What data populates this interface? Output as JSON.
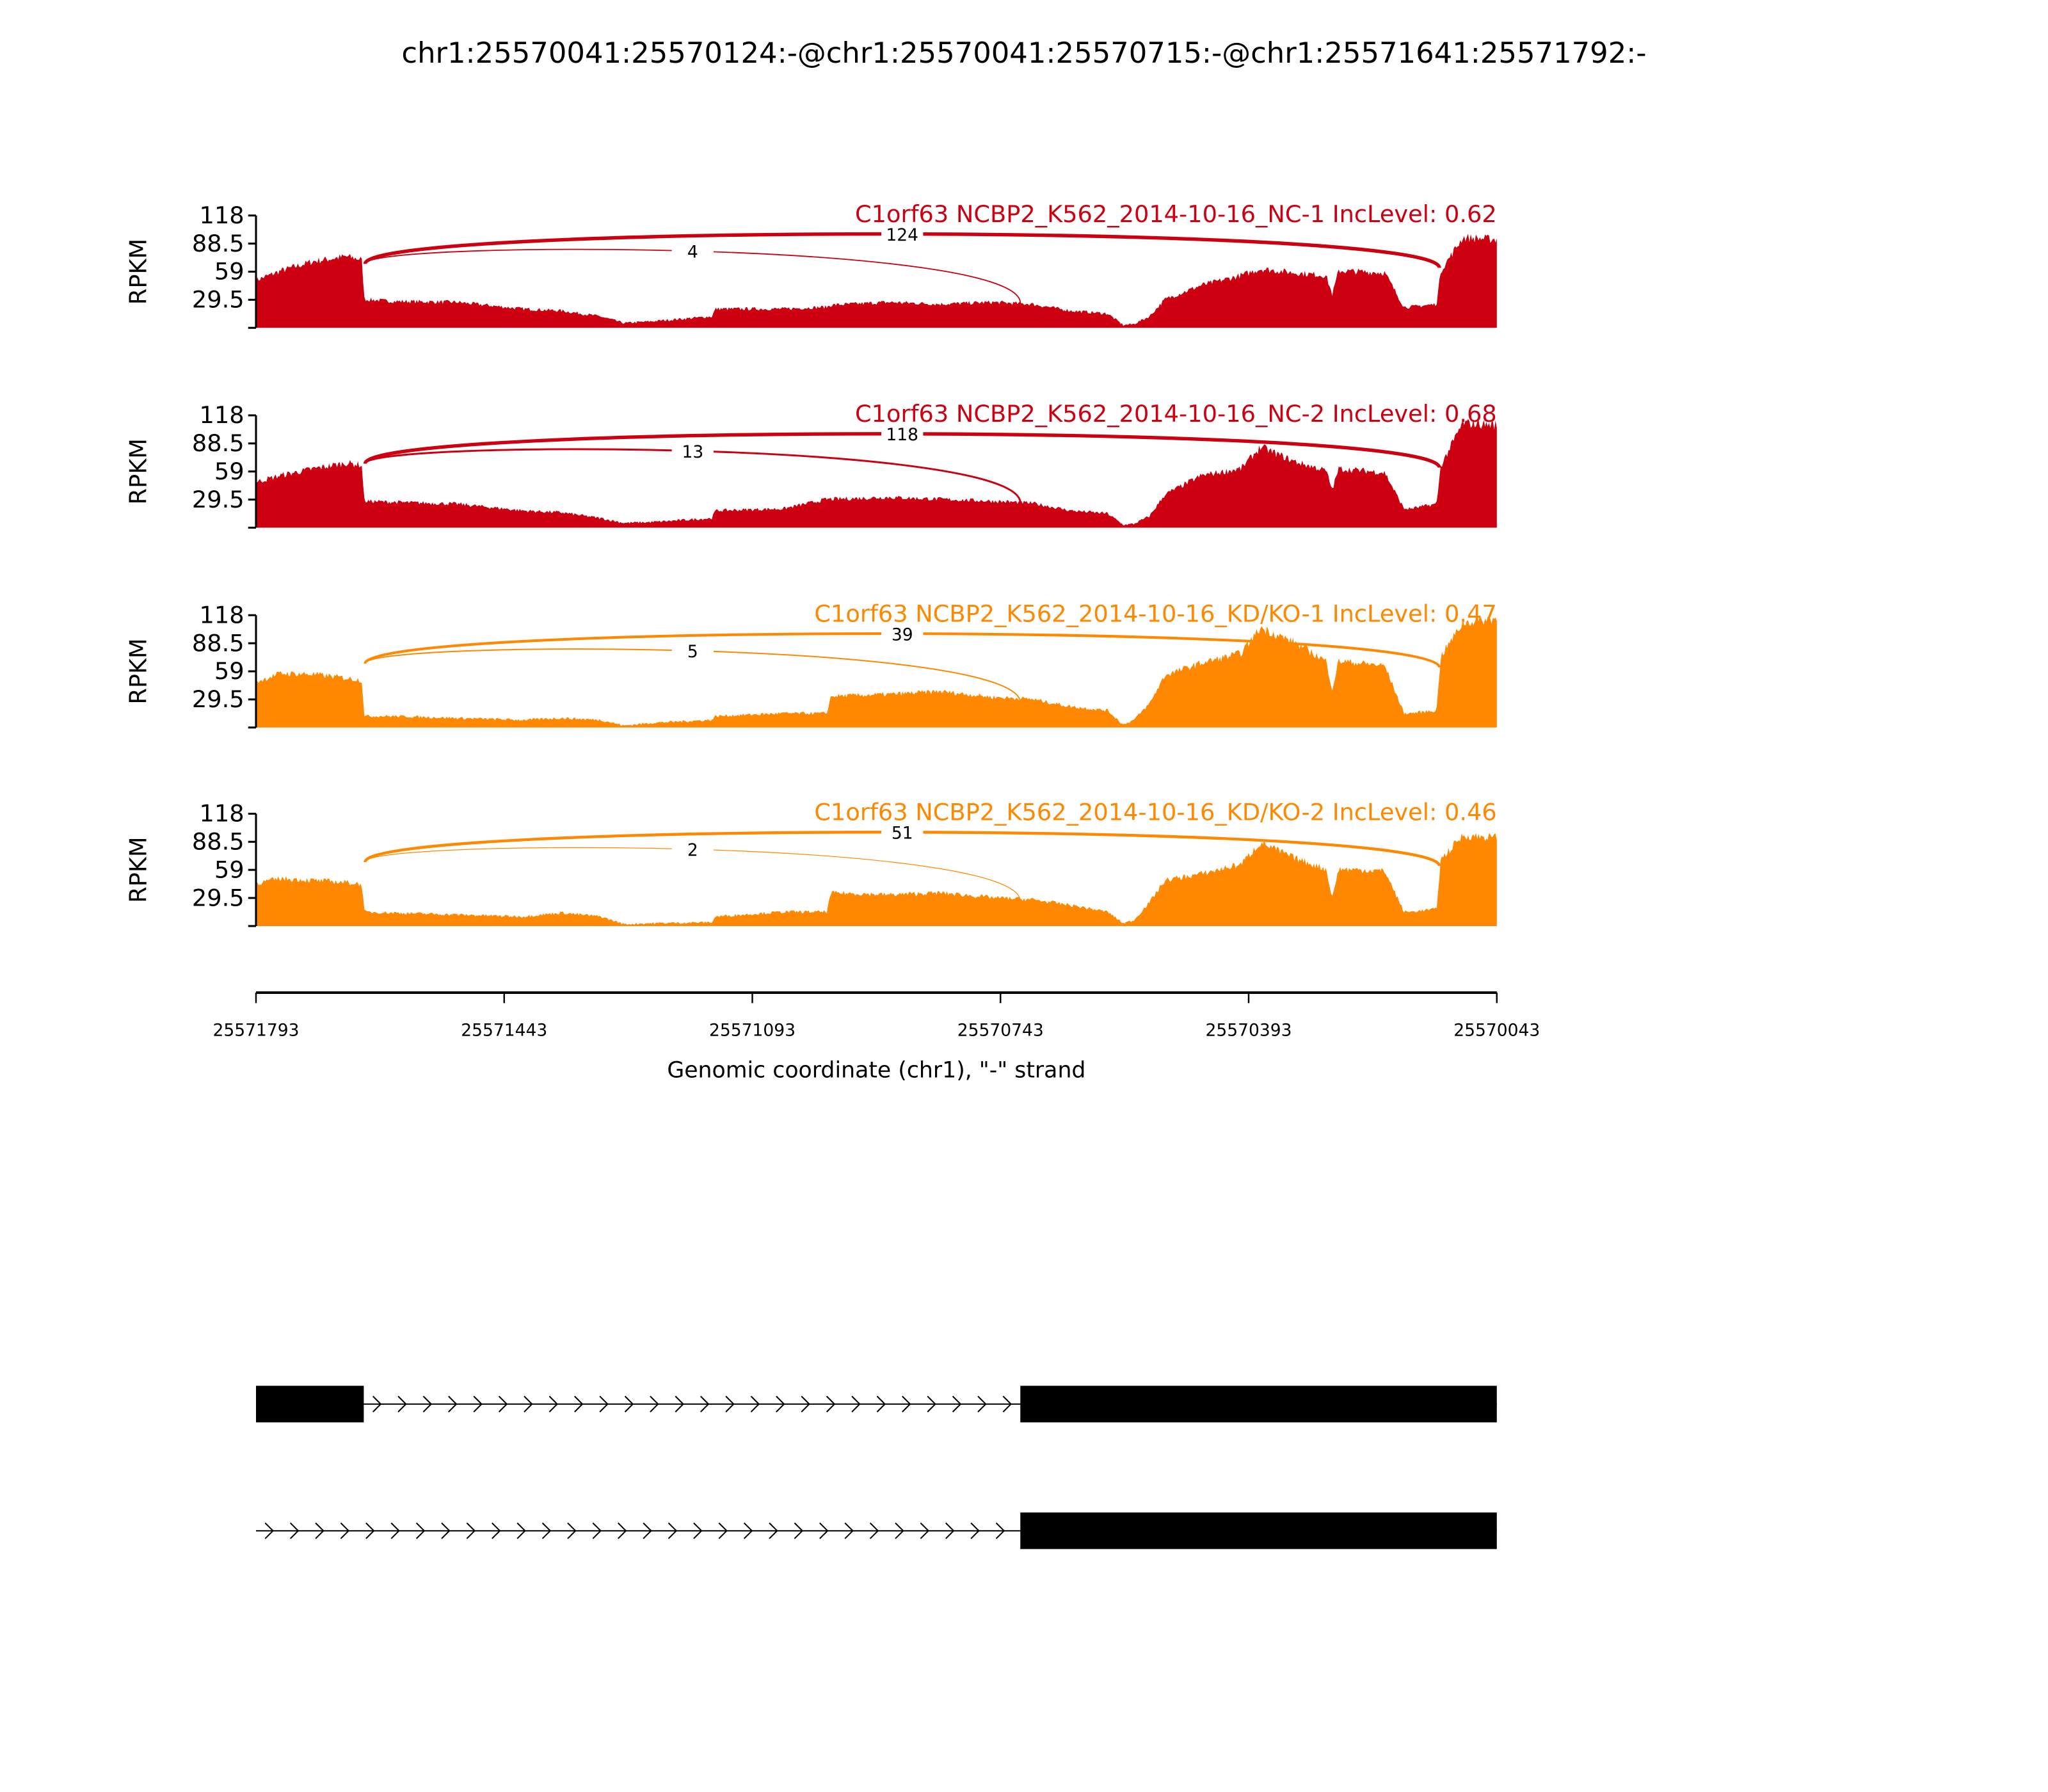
{
  "chart_data": {
    "type": "area",
    "title": "chr1:25570041:25570124:-@chr1:25570041:25570715:-@chr1:25571641:25571792:-",
    "xlabel": "Genomic coordinate (chr1), \"-\" strand",
    "ylabel": "RPKM",
    "xlim": [
      25571793,
      25570043
    ],
    "xticks": [
      "25571793",
      "25571443",
      "25571093",
      "25570743",
      "25570393",
      "25570043"
    ],
    "xtick_values": [
      25571793,
      25571443,
      25571093,
      25570743,
      25570393,
      25570043
    ],
    "ylim": [
      0,
      118
    ],
    "yticks": [
      "118",
      "88.5",
      "59",
      "29.5"
    ],
    "ytick_values": [
      118,
      88.5,
      59,
      29.5,
      0
    ],
    "positions": [
      25571793,
      25571758,
      25571712,
      25571666,
      25571644,
      25571640,
      25571601,
      25571509,
      25571417,
      25571362,
      25571307,
      25571274,
      25571233,
      25571150,
      25571145,
      25571049,
      25570988,
      25570982,
      25570901,
      25570828,
      25570754,
      25570699,
      25570644,
      25570592,
      25570570,
      25570555,
      25570533,
      25570511,
      25570459,
      25570404,
      25570376,
      25570330,
      25570284,
      25570275,
      25570266,
      25570201,
      25570174,
      25570165,
      25570128,
      25570122,
      25570091,
      25570043
    ],
    "series": [
      {
        "name": "C1orf63 NCBP2_K562_2014-10-16_NC-1 IncLevel: 0.62",
        "color": "#cc0011",
        "coverage": [
          50,
          60,
          70,
          75,
          72,
          30,
          28,
          27,
          20,
          18,
          12,
          5,
          7,
          12,
          20,
          20,
          22,
          24,
          27,
          25,
          27,
          25,
          18,
          15,
          3,
          4,
          12,
          30,
          45,
          55,
          62,
          58,
          55,
          35,
          60,
          58,
          22,
          22,
          25,
          60,
          95,
          93
        ],
        "junctions": [
          {
            "start": 25571641,
            "end": 25570124,
            "count": "124"
          },
          {
            "start": 25571641,
            "end": 25570715,
            "count": "4"
          }
        ]
      },
      {
        "name": "C1orf63 NCBP2_K562_2014-10-16_NC-2 IncLevel: 0.68",
        "color": "#cc0011",
        "coverage": [
          48,
          55,
          62,
          68,
          66,
          28,
          27,
          25,
          18,
          16,
          10,
          5,
          6,
          10,
          18,
          20,
          30,
          30,
          32,
          30,
          28,
          26,
          18,
          15,
          3,
          4,
          12,
          35,
          55,
          62,
          85,
          70,
          60,
          40,
          62,
          58,
          20,
          20,
          25,
          65,
          110,
          108
        ],
        "junctions": [
          {
            "start": 25571641,
            "end": 25570124,
            "count": "118"
          },
          {
            "start": 25571641,
            "end": 25570715,
            "count": "13"
          }
        ]
      },
      {
        "name": "C1orf63 NCBP2_K562_2014-10-16_KD/KO-1 IncLevel: 0.47",
        "color": "#ff8800",
        "coverage": [
          48,
          57,
          56,
          52,
          50,
          12,
          12,
          10,
          8,
          10,
          8,
          2,
          5,
          8,
          12,
          15,
          15,
          33,
          35,
          38,
          32,
          30,
          22,
          18,
          3,
          8,
          25,
          55,
          68,
          78,
          105,
          90,
          70,
          40,
          70,
          65,
          15,
          15,
          18,
          75,
          110,
          115
        ],
        "junctions": [
          {
            "start": 25571641,
            "end": 25570124,
            "count": "39"
          },
          {
            "start": 25571641,
            "end": 25570715,
            "count": "5"
          }
        ]
      },
      {
        "name": "C1orf63 NCBP2_K562_2014-10-16_KD/KO-2 IncLevel: 0.46",
        "color": "#ff8800",
        "coverage": [
          45,
          50,
          48,
          46,
          44,
          15,
          14,
          12,
          10,
          14,
          10,
          2,
          3,
          4,
          10,
          15,
          15,
          35,
          33,
          35,
          30,
          28,
          22,
          15,
          3,
          6,
          25,
          48,
          55,
          65,
          88,
          72,
          60,
          30,
          60,
          58,
          15,
          15,
          18,
          70,
          95,
          93
        ],
        "junctions": [
          {
            "start": 25571641,
            "end": 25570124,
            "count": "51"
          },
          {
            "start": 25571641,
            "end": 25570715,
            "count": "2"
          }
        ]
      }
    ],
    "transcripts": [
      {
        "span": [
          25571793,
          25570043
        ],
        "exons": [
          [
            25571793,
            25571641
          ],
          [
            25570715,
            25570043
          ]
        ]
      },
      {
        "span": [
          25571793,
          25570043
        ],
        "exons": [
          [
            25570715,
            25570043
          ]
        ]
      }
    ]
  }
}
